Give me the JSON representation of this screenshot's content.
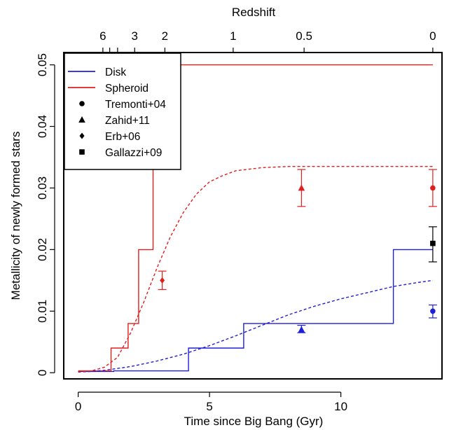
{
  "chart_data": {
    "type": "line",
    "xlabel": "Time since Big Bang (Gyr)",
    "ylabel": "Metallicity of newly formed stars",
    "top_axis_label": "Redshift",
    "xlim": [
      -0.55,
      13.85
    ],
    "ylim": [
      -0.001,
      0.052
    ],
    "x_ticks": [
      0,
      5,
      10
    ],
    "x_tick_labels": [
      "0",
      "5",
      "10"
    ],
    "y_ticks": [
      0,
      0.01,
      0.02,
      0.03,
      0.04,
      0.05
    ],
    "y_tick_labels": [
      "0",
      "0.01",
      "0.02",
      "0.03",
      "0.04",
      "0.05"
    ],
    "top_ticks": [
      {
        "label": "6",
        "x": 0.94
      },
      {
        "label": "",
        "x": 1.2
      },
      {
        "label": "",
        "x": 1.5
      },
      {
        "label": "3",
        "x": 2.15
      },
      {
        "label": "2",
        "x": 3.3
      },
      {
        "label": "1",
        "x": 5.9
      },
      {
        "label": "0.5",
        "x": 8.6
      },
      {
        "label": "0",
        "x": 13.5
      }
    ],
    "grid": false,
    "legend_position": "top-left",
    "legend": [
      {
        "label": "Disk",
        "marker": "line",
        "color": "#1f1fd6"
      },
      {
        "label": "Spheroid",
        "marker": "line",
        "color": "#e01f1f"
      },
      {
        "label": "Tremonti+04",
        "marker": "circle",
        "color": "#000000"
      },
      {
        "label": "Zahid+11",
        "marker": "triangle",
        "color": "#000000"
      },
      {
        "label": "Erb+06",
        "marker": "diamond",
        "color": "#000000"
      },
      {
        "label": "Gallazzi+09",
        "marker": "square",
        "color": "#000000"
      }
    ],
    "series": [
      {
        "name": "Disk",
        "style": "step",
        "color": "#1f1fd6",
        "x": [
          0,
          1.35,
          1.35,
          4.2,
          4.2,
          6.3,
          6.3,
          12.0,
          12.0,
          13.5
        ],
        "y": [
          0.0002,
          0.0002,
          0.0003,
          0.0003,
          0.004,
          0.004,
          0.008,
          0.008,
          0.02,
          0.02
        ]
      },
      {
        "name": "Spheroid",
        "style": "step",
        "color": "#e01f1f",
        "x": [
          0,
          1.25,
          1.25,
          1.9,
          1.9,
          2.3,
          2.3,
          2.85,
          2.85,
          5.75,
          5.75,
          13.5
        ],
        "y": [
          0.0003,
          0.0003,
          0.004,
          0.004,
          0.008,
          0.008,
          0.02,
          0.02,
          0.05,
          0.05,
          0.05,
          0.05
        ]
      },
      {
        "name": "",
        "style": "dashed",
        "color": "#1f1fd6",
        "x": [
          0,
          0.5,
          1,
          1.5,
          2,
          3,
          4,
          5,
          6,
          7,
          8,
          9,
          10,
          11,
          12,
          13,
          13.5
        ],
        "y": [
          0.0001,
          0.0002,
          0.0004,
          0.0007,
          0.001,
          0.0019,
          0.003,
          0.0044,
          0.006,
          0.0077,
          0.0094,
          0.0108,
          0.012,
          0.013,
          0.014,
          0.0147,
          0.015
        ]
      },
      {
        "name": "",
        "style": "dashed",
        "color": "#e01f1f",
        "x": [
          0,
          0.5,
          1,
          1.5,
          2,
          2.5,
          3,
          3.5,
          4,
          4.5,
          5,
          5.5,
          6,
          7,
          8,
          9,
          10,
          11,
          12,
          13,
          13.5
        ],
        "y": [
          0.0001,
          0.0003,
          0.0009,
          0.0025,
          0.0065,
          0.0115,
          0.017,
          0.022,
          0.026,
          0.029,
          0.031,
          0.032,
          0.0328,
          0.0333,
          0.0335,
          0.0335,
          0.0335,
          0.0335,
          0.0335,
          0.0335,
          0.0335
        ]
      }
    ],
    "points": [
      {
        "name": "Erb+06",
        "marker": "diamond",
        "color": "#e01f1f",
        "x": 3.2,
        "y": 0.015,
        "err": [
          0.0135,
          0.0165
        ]
      },
      {
        "name": "Zahid+11",
        "marker": "triangle",
        "color": "#e01f1f",
        "x": 8.5,
        "y": 0.03,
        "err": [
          0.027,
          0.033
        ]
      },
      {
        "name": "Tremonti+04",
        "marker": "circle",
        "color": "#e01f1f",
        "x": 13.5,
        "y": 0.03,
        "err": [
          0.027,
          0.033
        ]
      },
      {
        "name": "Zahid+11",
        "marker": "triangle",
        "color": "#1f1fd6",
        "x": 8.5,
        "y": 0.007,
        "err": [
          0.0065,
          0.0077
        ]
      },
      {
        "name": "Tremonti+04",
        "marker": "circle",
        "color": "#1f1fd6",
        "x": 13.5,
        "y": 0.01,
        "err": [
          0.0089,
          0.011
        ]
      },
      {
        "name": "Gallazzi+09",
        "marker": "square",
        "color": "#000000",
        "x": 13.5,
        "y": 0.021,
        "err": [
          0.018,
          0.0237
        ]
      }
    ]
  }
}
